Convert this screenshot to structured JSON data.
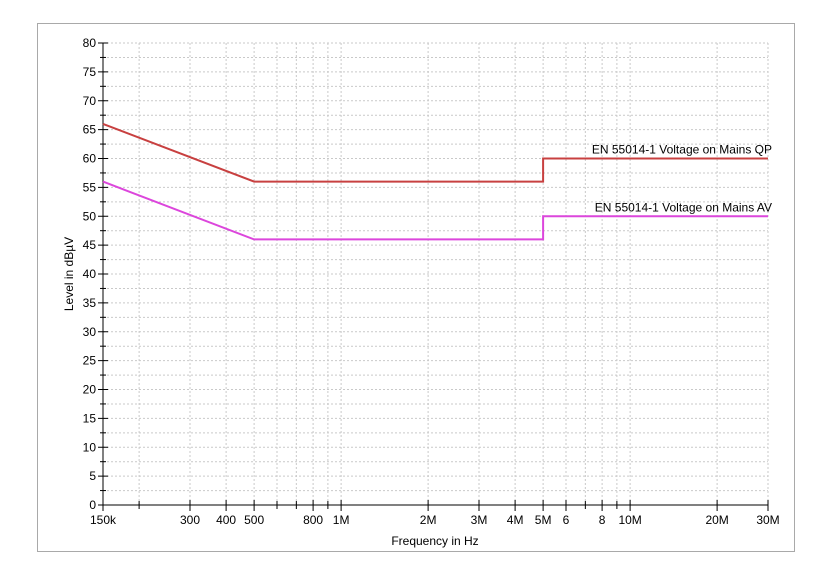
{
  "chart_data": {
    "type": "line",
    "title": "",
    "xlabel": "Frequency in Hz",
    "ylabel": "Level in dBµV",
    "x_scale": "log",
    "xlim": [
      150000,
      30000000
    ],
    "ylim": [
      0,
      80
    ],
    "grid": "on",
    "y_label_step": 5,
    "y_grid_step": 2.5,
    "legend_position": "inline-right-above-line",
    "x_ticks": [
      {
        "f": 150000,
        "label": "150k"
      },
      {
        "f": 200000,
        "label": ""
      },
      {
        "f": 300000,
        "label": "300"
      },
      {
        "f": 400000,
        "label": "400"
      },
      {
        "f": 500000,
        "label": "500"
      },
      {
        "f": 600000,
        "label": ""
      },
      {
        "f": 700000,
        "label": ""
      },
      {
        "f": 800000,
        "label": "800"
      },
      {
        "f": 900000,
        "label": ""
      },
      {
        "f": 1000000,
        "label": "1M"
      },
      {
        "f": 2000000,
        "label": "2M"
      },
      {
        "f": 3000000,
        "label": "3M"
      },
      {
        "f": 4000000,
        "label": "4M"
      },
      {
        "f": 5000000,
        "label": "5M"
      },
      {
        "f": 6000000,
        "label": "6"
      },
      {
        "f": 7000000,
        "label": ""
      },
      {
        "f": 8000000,
        "label": "8"
      },
      {
        "f": 9000000,
        "label": ""
      },
      {
        "f": 10000000,
        "label": "10M"
      },
      {
        "f": 20000000,
        "label": "20M"
      },
      {
        "f": 30000000,
        "label": "30M"
      }
    ],
    "series": [
      {
        "name": "EN 55014-1 Voltage on Mains QP",
        "color": "#c84040",
        "points": [
          [
            150000,
            66
          ],
          [
            500000,
            56
          ],
          [
            5000000,
            56
          ],
          [
            5000000,
            60
          ],
          [
            30000000,
            60
          ]
        ]
      },
      {
        "name": "EN 55014-1 Voltage on Mains AV",
        "color": "#dc46dc",
        "points": [
          [
            150000,
            56
          ],
          [
            500000,
            46
          ],
          [
            5000000,
            46
          ],
          [
            5000000,
            50
          ],
          [
            30000000,
            50
          ]
        ]
      }
    ]
  },
  "colors": {
    "background": "#ffffff",
    "frame_border": "#a9a9a9",
    "grid": "#c9c9c9",
    "axis": "#000000"
  }
}
